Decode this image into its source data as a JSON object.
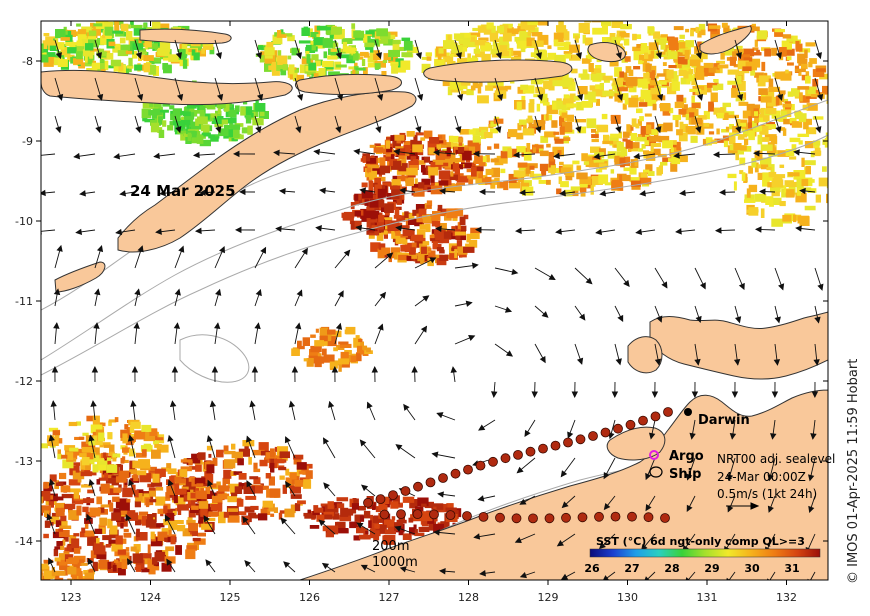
{
  "date_label": "24 Mar 2025",
  "credit": "© IMOS 01-Apr-2025 11:59 Hobart",
  "place_labels": {
    "darwin": "Darwin"
  },
  "legend": {
    "argo": "Argo",
    "ship": "Ship"
  },
  "current_info": {
    "line1": "NRT00 adj. sealevel",
    "line2": "24-Mar 00:00Z",
    "line3": "0.5m/s (1kt 24h)"
  },
  "contours": {
    "c200": "200m",
    "c1000": "1000m"
  },
  "colorbar": {
    "title": "SST (°C) 6d ngt-only comp QL>=3",
    "ticks": [
      "26",
      "27",
      "28",
      "29",
      "30",
      "31"
    ],
    "colors": [
      "#0b0b7a",
      "#1a3fd0",
      "#1f9ee8",
      "#2bd0c0",
      "#39d23a",
      "#a5e02c",
      "#f1e92a",
      "#f6b21c",
      "#ef7d14",
      "#d64510",
      "#9c0f08"
    ]
  },
  "axes": {
    "x_ticks": [
      "123",
      "124",
      "125",
      "126",
      "127",
      "128",
      "129",
      "130",
      "131",
      "132"
    ],
    "y_ticks": [
      "-8",
      "-9",
      "-10",
      "-11",
      "-12",
      "-13",
      "-14"
    ]
  },
  "colors": {
    "land": "#f9c89a",
    "coast": "#333333",
    "bathy": "#aaaaaa"
  }
}
